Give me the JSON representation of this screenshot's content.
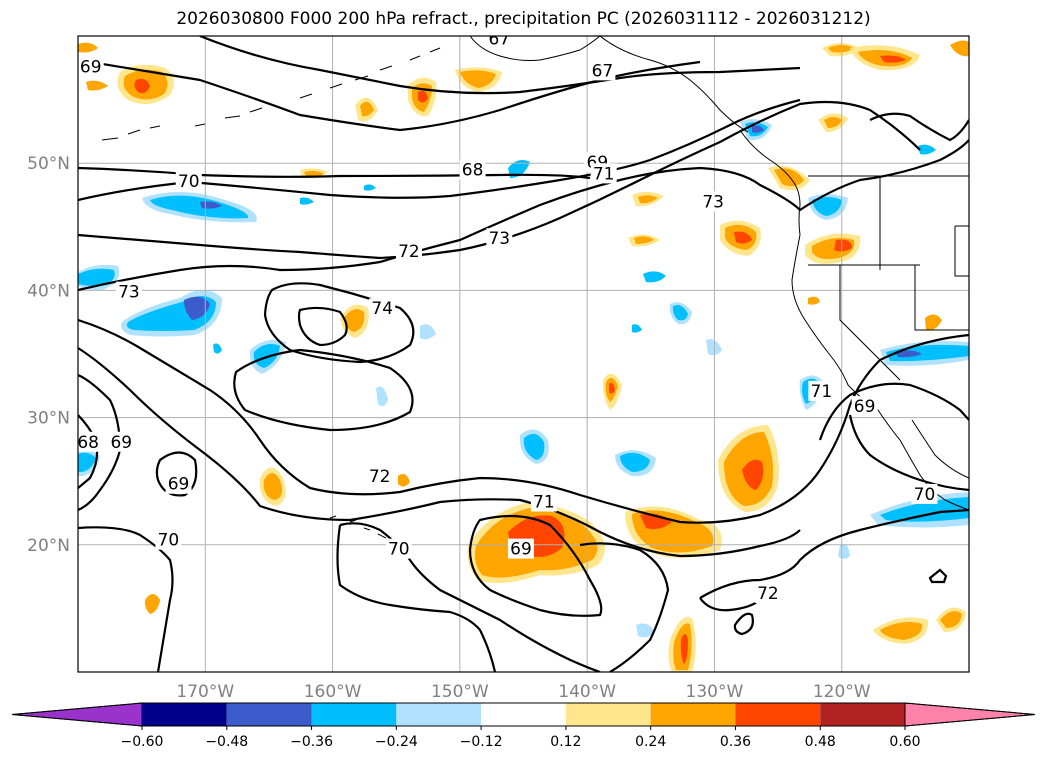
{
  "title": "2026030800 F000 200 hPa refract., precipitation PC (2026031112 - 2026031212)",
  "map": {
    "lon_range": [
      -180,
      -110
    ],
    "lat_range": [
      10,
      60
    ],
    "lat_ticks": [
      {
        "value": 20,
        "label": "20°N"
      },
      {
        "value": 30,
        "label": "30°N"
      },
      {
        "value": 40,
        "label": "40°N"
      },
      {
        "value": 50,
        "label": "50°N"
      }
    ],
    "lon_ticks": [
      {
        "value": -170,
        "label": "170°W"
      },
      {
        "value": -160,
        "label": "160°W"
      },
      {
        "value": -150,
        "label": "150°W"
      },
      {
        "value": -140,
        "label": "140°W"
      },
      {
        "value": -130,
        "label": "130°W"
      },
      {
        "value": -120,
        "label": "120°W"
      }
    ],
    "grid": true,
    "contour_labels": [
      {
        "text": "67",
        "lon": -146.9,
        "lat": 59.8
      },
      {
        "text": "69",
        "lon": -179.0,
        "lat": 57.6
      },
      {
        "text": "67",
        "lon": -138.8,
        "lat": 57.3
      },
      {
        "text": "69",
        "lon": -139.2,
        "lat": 50.1
      },
      {
        "text": "68",
        "lon": -149.0,
        "lat": 49.5
      },
      {
        "text": "71",
        "lon": -138.7,
        "lat": 49.2
      },
      {
        "text": "70",
        "lon": -171.3,
        "lat": 48.6
      },
      {
        "text": "73",
        "lon": -130.1,
        "lat": 47.0
      },
      {
        "text": "73",
        "lon": -146.9,
        "lat": 44.1
      },
      {
        "text": "72",
        "lon": -154.0,
        "lat": 43.1
      },
      {
        "text": "73",
        "lon": -176.0,
        "lat": 39.9
      },
      {
        "text": "74",
        "lon": -156.1,
        "lat": 38.6
      },
      {
        "text": "71",
        "lon": -121.6,
        "lat": 32.1
      },
      {
        "text": "69",
        "lon": -118.2,
        "lat": 30.9
      },
      {
        "text": "68",
        "lon": -179.2,
        "lat": 28.1
      },
      {
        "text": "69",
        "lon": -176.6,
        "lat": 28.1
      },
      {
        "text": "72",
        "lon": -156.3,
        "lat": 25.4
      },
      {
        "text": "69",
        "lon": -172.1,
        "lat": 24.8
      },
      {
        "text": "71",
        "lon": -143.4,
        "lat": 23.4
      },
      {
        "text": "70",
        "lon": -113.5,
        "lat": 24.0
      },
      {
        "text": "70",
        "lon": -172.9,
        "lat": 20.4
      },
      {
        "text": "70",
        "lon": -154.8,
        "lat": 19.7
      },
      {
        "text": "69",
        "lon": -145.2,
        "lat": 19.7
      },
      {
        "text": "72",
        "lon": -125.8,
        "lat": 16.2
      }
    ]
  },
  "colorbar": {
    "colors": [
      "#9933cc",
      "#00008b",
      "#3c5ccc",
      "#00bfff",
      "#b0e2ff",
      "#ffffff",
      "#ffe68c",
      "#ffa500",
      "#ff4500",
      "#b22222",
      "#ff82ab"
    ],
    "levels": [
      -0.6,
      -0.48,
      -0.36,
      -0.24,
      -0.12,
      0.12,
      0.24,
      0.36,
      0.48,
      0.6
    ],
    "tick_labels": [
      "−0.60",
      "−0.48",
      "−0.36",
      "−0.24",
      "−0.12",
      "0.12",
      "0.24",
      "0.36",
      "0.48",
      "0.60"
    ],
    "extend": "both"
  }
}
